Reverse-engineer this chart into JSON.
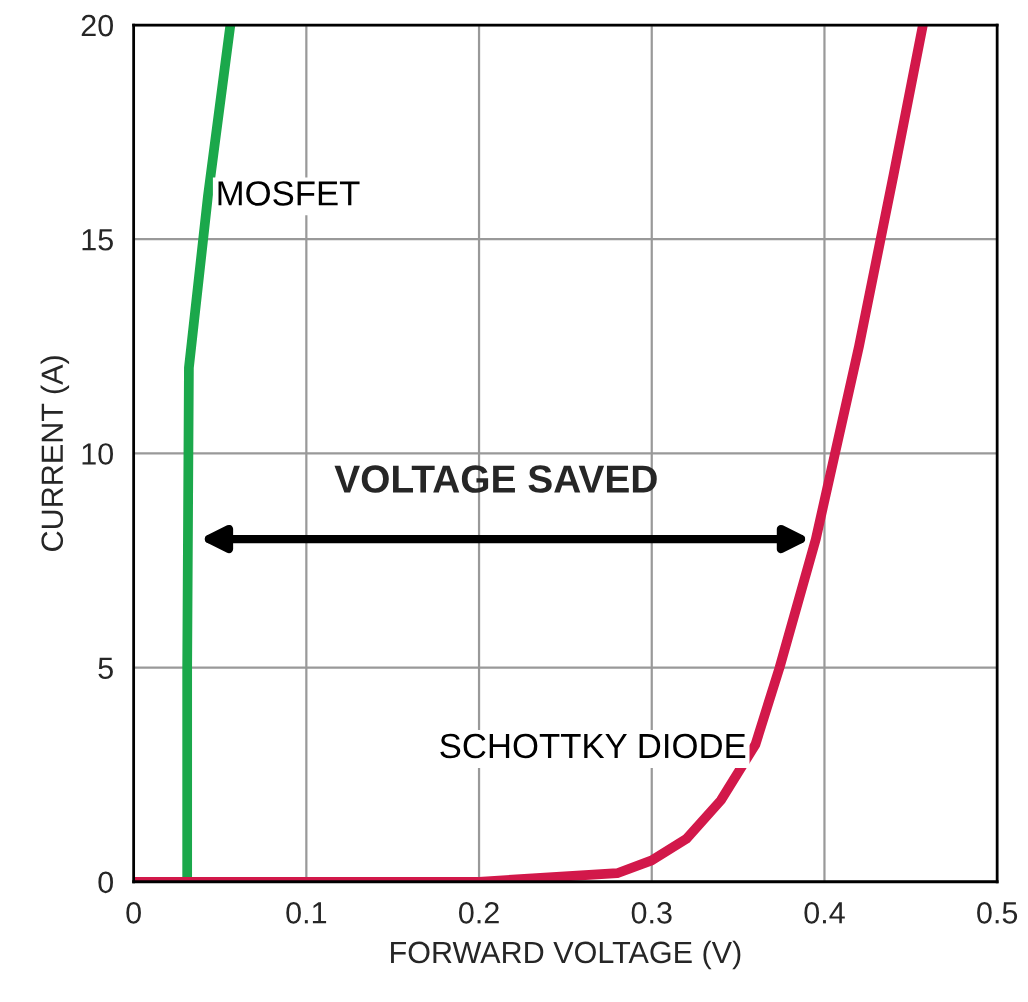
{
  "chart_data": {
    "type": "line",
    "xlabel": "FORWARD VOLTAGE (V)",
    "ylabel": "CURRENT (A)",
    "series": [
      {
        "name": "MOSFET",
        "color": "#1ba84b",
        "x": [
          0.031,
          0.031,
          0.032,
          0.043,
          0.056
        ],
        "values": [
          0,
          5,
          12,
          16,
          20
        ]
      },
      {
        "name": "SCHOTTKY DIODE",
        "color": "#d2184a",
        "x": [
          0,
          0.1,
          0.2,
          0.28,
          0.3,
          0.32,
          0.34,
          0.36,
          0.374,
          0.395,
          0.42,
          0.44,
          0.457
        ],
        "values": [
          0,
          0,
          0,
          0.2,
          0.5,
          1,
          1.9,
          3.2,
          5,
          8,
          12.5,
          16.5,
          20
        ]
      }
    ],
    "annotations": [
      "VOLTAGE SAVED"
    ],
    "xlim": [
      0,
      0.5
    ],
    "xticks": [
      0,
      0.1,
      0.2,
      0.3,
      0.4,
      0.5
    ],
    "ylim": [
      0,
      20
    ],
    "yticks": [
      0,
      5,
      10,
      15,
      20
    ],
    "grid": true,
    "legend": false
  }
}
